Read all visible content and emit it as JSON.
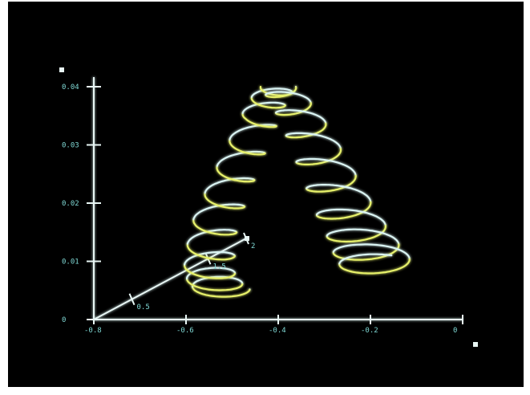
{
  "chart_data": {
    "type": "line",
    "title": "",
    "xlabel": "",
    "ylabel": "",
    "zlabel": "",
    "xlim": [
      -0.8,
      0
    ],
    "ylim": [
      0,
      0.04
    ],
    "zlim": [
      0,
      2
    ],
    "x_ticks": [
      "-0.8",
      "-0.6",
      "-0.4",
      "-0.2",
      "0"
    ],
    "y_ticks": [
      "0",
      "0.01",
      "0.02",
      "0.03",
      "0.04"
    ],
    "z_ticks": [
      "0",
      "0.5",
      "1.5",
      "2"
    ],
    "grid": false,
    "legend": "none",
    "series": [
      {
        "description": "helical trajectory, first rising branch",
        "x": [
          -0.62,
          -0.61,
          -0.6,
          -0.58,
          -0.56,
          -0.53,
          -0.5,
          -0.47,
          -0.44,
          -0.42,
          -0.4
        ],
        "y": [
          0.001,
          0.003,
          0.006,
          0.01,
          0.015,
          0.02,
          0.025,
          0.03,
          0.035,
          0.038,
          0.04
        ],
        "z": [
          0.6,
          0.45,
          0.3,
          0.2,
          0.12,
          0.08,
          0.05,
          0.03,
          0.02,
          0.01,
          0.0
        ]
      },
      {
        "description": "helical trajectory, descending branch",
        "x": [
          -0.4,
          -0.37,
          -0.34,
          -0.31,
          -0.28,
          -0.25,
          -0.22,
          -0.2,
          -0.18
        ],
        "y": [
          0.04,
          0.037,
          0.033,
          0.028,
          0.023,
          0.018,
          0.014,
          0.011,
          0.009
        ],
        "z": [
          0.0,
          0.0,
          0.0,
          0.0,
          0.0,
          0.0,
          0.0,
          0.0,
          0.0
        ]
      }
    ],
    "colors": {
      "background": "#000000",
      "axis": "#e8f6f4",
      "tick_label": "#7fd8d4",
      "trace_white": "#d9f3f2",
      "trace_yellow": "#e6f06a"
    }
  }
}
